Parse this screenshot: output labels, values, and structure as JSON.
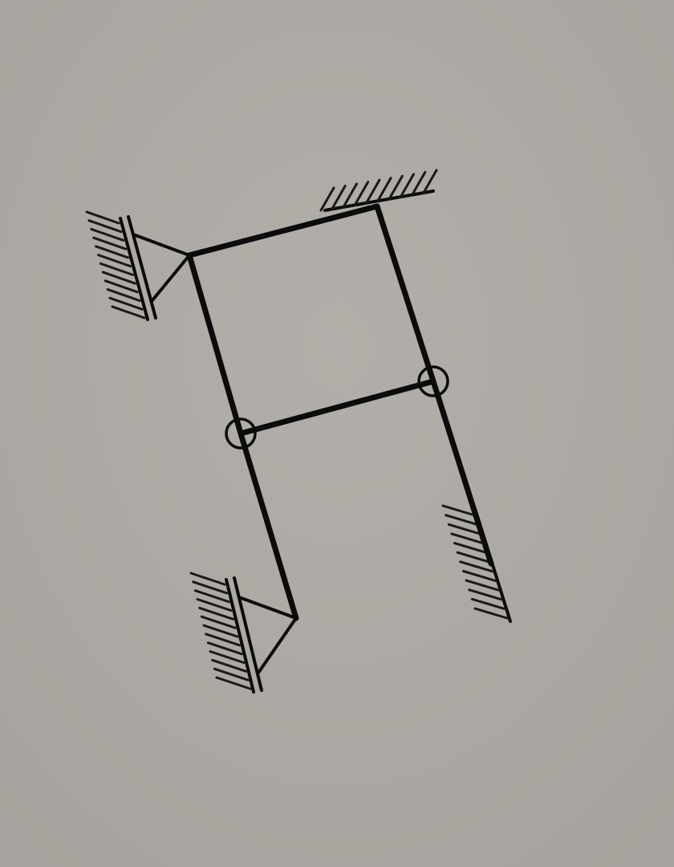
{
  "diagram": {
    "kind": "structural frame schematic",
    "colors": {
      "background": "#ada9a4",
      "line": "#0b0b0b"
    },
    "members": [
      {
        "id": "top-beam",
        "from": "pin-left-top",
        "to": "fixed-top"
      },
      {
        "id": "left-column-upper",
        "from": "pin-left-top",
        "to": "hinge-left"
      },
      {
        "id": "left-column-lower",
        "from": "hinge-left",
        "to": "pin-left-bottom"
      },
      {
        "id": "right-column-upper",
        "from": "fixed-top",
        "to": "hinge-right"
      },
      {
        "id": "right-column-lower",
        "from": "hinge-right",
        "to": "fixed-bottom-right"
      },
      {
        "id": "middle-beam",
        "from": "hinge-left",
        "to": "hinge-right"
      }
    ],
    "supports": [
      {
        "id": "pin-left-top",
        "type": "pin-support-on-wall"
      },
      {
        "id": "fixed-top",
        "type": "fixed-support-ceiling"
      },
      {
        "id": "pin-left-bottom",
        "type": "pin-support-on-wall"
      },
      {
        "id": "fixed-bottom-right",
        "type": "fixed-support-inclined"
      }
    ],
    "hinges": [
      "hinge-left",
      "hinge-right"
    ]
  }
}
